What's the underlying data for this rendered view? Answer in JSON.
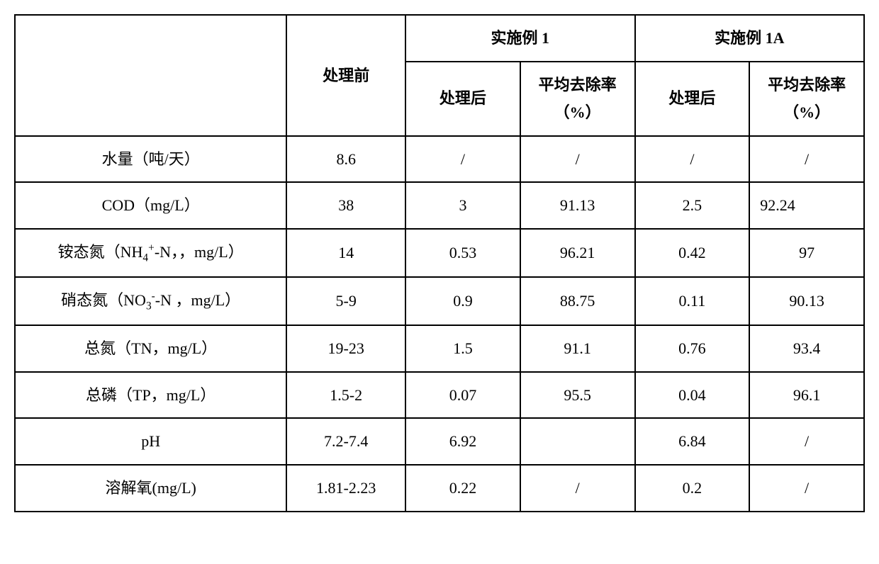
{
  "table": {
    "header": {
      "row_label_blank": "",
      "before": "处理前",
      "group1": "实施例 1",
      "group1a": "实施例 1A",
      "sub_after": "处理后",
      "sub_rate": "平均去除率（%）"
    },
    "rows": [
      {
        "label_text": "水量（吨/天）",
        "before": "8.6",
        "g1_after": "/",
        "g1_rate": "/",
        "g1a_after": "/",
        "g1a_rate": "/"
      },
      {
        "label_text": "COD（mg/L）",
        "before": "38",
        "g1_after": "3",
        "g1_rate": "91.13",
        "g1a_after": "2.5",
        "g1a_rate": "92.24",
        "g1a_rate_align_left": true
      },
      {
        "label_html": "铵态氮（NH<sub>4</sub><sup>+</sup>-N，，mg/L）",
        "before": "14",
        "g1_after": "0.53",
        "g1_rate": "96.21",
        "g1a_after": "0.42",
        "g1a_rate": "97"
      },
      {
        "label_html": "硝态氮（NO<sub>3</sub><sup>-</sup>-N ，mg/L）",
        "before": "5-9",
        "g1_after": "0.9",
        "g1_rate": "88.75",
        "g1a_after": "0.11",
        "g1a_rate": "90.13"
      },
      {
        "label_text": "总氮（TN，mg/L）",
        "before": "19-23",
        "g1_after": "1.5",
        "g1_rate": "91.1",
        "g1a_after": "0.76",
        "g1a_rate": "93.4"
      },
      {
        "label_text": "总磷（TP，mg/L）",
        "before": "1.5-2",
        "g1_after": "0.07",
        "g1_rate": "95.5",
        "g1a_after": "0.04",
        "g1a_rate": "96.1"
      },
      {
        "label_text": "pH",
        "before": "7.2-7.4",
        "g1_after": "6.92",
        "g1_rate": "",
        "g1a_after": "6.84",
        "g1a_rate": "/"
      },
      {
        "label_text": "溶解氧(mg/L)",
        "before": "1.81-2.23",
        "g1_after": "0.22",
        "g1_rate": "/",
        "g1a_after": "0.2",
        "g1a_rate": "/"
      }
    ]
  }
}
